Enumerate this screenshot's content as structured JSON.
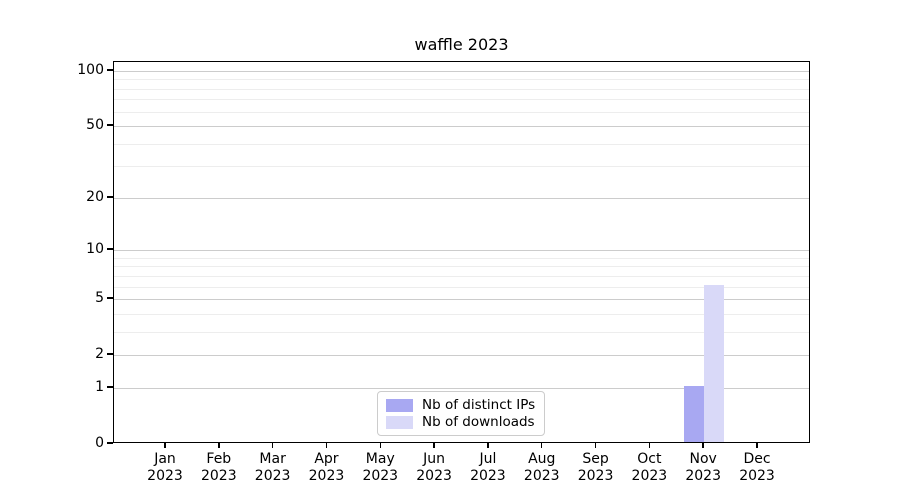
{
  "chart_data": {
    "type": "bar",
    "title": "waffle 2023",
    "categories": [
      "Jan 2023",
      "Feb 2023",
      "Mar 2023",
      "Apr 2023",
      "May 2023",
      "Jun 2023",
      "Jul 2023",
      "Aug 2023",
      "Sep 2023",
      "Oct 2023",
      "Nov 2023",
      "Dec 2023"
    ],
    "series": [
      {
        "name": "Nb of distinct IPs",
        "color": "#a8a8f2",
        "values": [
          0,
          0,
          0,
          0,
          0,
          0,
          0,
          0,
          0,
          0,
          1,
          0
        ]
      },
      {
        "name": "Nb of downloads",
        "color": "#d9d9f8",
        "values": [
          0,
          0,
          0,
          0,
          0,
          0,
          0,
          0,
          0,
          0,
          6,
          0
        ]
      }
    ],
    "xlabel": "",
    "ylabel": "",
    "y_scale": "log1p",
    "ylim": [
      0,
      100
    ],
    "y_major_ticks": [
      0,
      1,
      2,
      5,
      10,
      20,
      50,
      100
    ],
    "y_minor_gridlines": [
      3,
      4,
      6,
      7,
      8,
      9,
      30,
      40,
      60,
      70,
      80,
      90
    ],
    "grid": "both-horizontal",
    "legend_position": "lower center"
  },
  "colors": {
    "background": "#ffffff",
    "axis": "#000000",
    "grid_major": "#cccccc",
    "grid_minor": "#ededed",
    "legend_border": "#cccccc",
    "bar_distinct_ips": "#a8a8f2",
    "bar_downloads": "#d9d9f8"
  }
}
